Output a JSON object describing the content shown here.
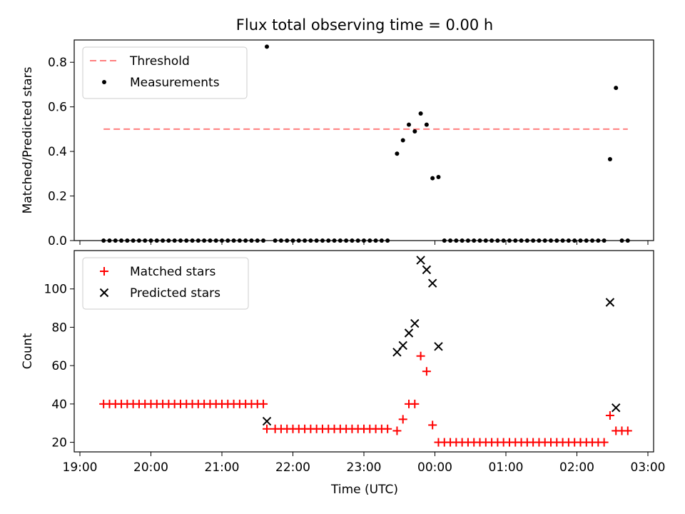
{
  "figure": {
    "title": "Flux total observing time = 0.00 h",
    "xlabel": "Time (UTC)"
  },
  "colors": {
    "threshold": "#ff7f7f",
    "measurements": "#000000",
    "matched": "#ff0000",
    "predicted": "#000000"
  },
  "chart_data": [
    {
      "type": "scatter",
      "panel": "top",
      "ylabel": "Matched/Predicted stars",
      "xlim": [
        "19:00",
        "03:00"
      ],
      "ylim": [
        0,
        0.9
      ],
      "yticks": [
        "0.0",
        "0.2",
        "0.4",
        "0.6",
        "0.8"
      ],
      "xticks": [
        "19:00",
        "20:00",
        "21:00",
        "22:00",
        "23:00",
        "00:00",
        "01:00",
        "02:00",
        "03:00"
      ],
      "show_xticklabels": false,
      "grid": false,
      "legend": {
        "position": "top-left",
        "entries": [
          "Threshold",
          "Measurements"
        ]
      },
      "threshold": {
        "name": "Threshold",
        "y": 0.5,
        "x_start": "19:20",
        "x_end": "02:43"
      },
      "series": [
        {
          "name": "Measurements",
          "marker": "dot",
          "points": [
            [
              "19:20",
              0
            ],
            [
              "19:25",
              0
            ],
            [
              "19:30",
              0
            ],
            [
              "19:35",
              0
            ],
            [
              "19:40",
              0
            ],
            [
              "19:45",
              0
            ],
            [
              "19:50",
              0
            ],
            [
              "19:55",
              0
            ],
            [
              "20:00",
              0
            ],
            [
              "20:05",
              0
            ],
            [
              "20:10",
              0
            ],
            [
              "20:15",
              0
            ],
            [
              "20:20",
              0
            ],
            [
              "20:25",
              0
            ],
            [
              "20:30",
              0
            ],
            [
              "20:35",
              0
            ],
            [
              "20:40",
              0
            ],
            [
              "20:45",
              0
            ],
            [
              "20:50",
              0
            ],
            [
              "20:55",
              0
            ],
            [
              "21:00",
              0
            ],
            [
              "21:05",
              0
            ],
            [
              "21:10",
              0
            ],
            [
              "21:15",
              0
            ],
            [
              "21:20",
              0
            ],
            [
              "21:25",
              0
            ],
            [
              "21:30",
              0
            ],
            [
              "21:35",
              0
            ],
            [
              "21:38",
              0.87
            ],
            [
              "21:45",
              0
            ],
            [
              "21:50",
              0
            ],
            [
              "21:55",
              0
            ],
            [
              "22:00",
              0
            ],
            [
              "22:05",
              0
            ],
            [
              "22:10",
              0
            ],
            [
              "22:15",
              0
            ],
            [
              "22:20",
              0
            ],
            [
              "22:25",
              0
            ],
            [
              "22:30",
              0
            ],
            [
              "22:35",
              0
            ],
            [
              "22:40",
              0
            ],
            [
              "22:45",
              0
            ],
            [
              "22:50",
              0
            ],
            [
              "22:55",
              0
            ],
            [
              "23:00",
              0
            ],
            [
              "23:05",
              0
            ],
            [
              "23:10",
              0
            ],
            [
              "23:15",
              0
            ],
            [
              "23:20",
              0
            ],
            [
              "23:28",
              0.39
            ],
            [
              "23:33",
              0.45
            ],
            [
              "23:38",
              0.52
            ],
            [
              "23:43",
              0.49
            ],
            [
              "23:48",
              0.57
            ],
            [
              "23:53",
              0.52
            ],
            [
              "23:58",
              0.28
            ],
            [
              "00:03",
              0.285
            ],
            [
              "00:08",
              0
            ],
            [
              "00:13",
              0
            ],
            [
              "00:18",
              0
            ],
            [
              "00:23",
              0
            ],
            [
              "00:28",
              0
            ],
            [
              "00:33",
              0
            ],
            [
              "00:38",
              0
            ],
            [
              "00:43",
              0
            ],
            [
              "00:48",
              0
            ],
            [
              "00:53",
              0
            ],
            [
              "00:58",
              0
            ],
            [
              "01:03",
              0
            ],
            [
              "01:08",
              0
            ],
            [
              "01:13",
              0
            ],
            [
              "01:18",
              0
            ],
            [
              "01:23",
              0
            ],
            [
              "01:28",
              0
            ],
            [
              "01:33",
              0
            ],
            [
              "01:38",
              0
            ],
            [
              "01:43",
              0
            ],
            [
              "01:48",
              0
            ],
            [
              "01:53",
              0
            ],
            [
              "01:58",
              0
            ],
            [
              "02:03",
              0
            ],
            [
              "02:08",
              0
            ],
            [
              "02:13",
              0
            ],
            [
              "02:18",
              0
            ],
            [
              "02:23",
              0
            ],
            [
              "02:28",
              0.365
            ],
            [
              "02:33",
              0.685
            ],
            [
              "02:38",
              0
            ],
            [
              "02:43",
              0
            ]
          ]
        }
      ]
    },
    {
      "type": "scatter",
      "panel": "bottom",
      "ylabel": "Count",
      "xlim": [
        "19:00",
        "03:00"
      ],
      "ylim": [
        15,
        120
      ],
      "yticks": [
        "20",
        "40",
        "60",
        "80",
        "100"
      ],
      "xticks": [
        "19:00",
        "20:00",
        "21:00",
        "22:00",
        "23:00",
        "00:00",
        "01:00",
        "02:00",
        "03:00"
      ],
      "show_xticklabels": true,
      "grid": false,
      "legend": {
        "position": "top-left",
        "entries": [
          "Matched stars",
          "Predicted stars"
        ]
      },
      "series": [
        {
          "name": "Matched stars",
          "marker": "plus",
          "points": [
            [
              "19:20",
              40
            ],
            [
              "19:25",
              40
            ],
            [
              "19:30",
              40
            ],
            [
              "19:35",
              40
            ],
            [
              "19:40",
              40
            ],
            [
              "19:45",
              40
            ],
            [
              "19:50",
              40
            ],
            [
              "19:55",
              40
            ],
            [
              "20:00",
              40
            ],
            [
              "20:05",
              40
            ],
            [
              "20:10",
              40
            ],
            [
              "20:15",
              40
            ],
            [
              "20:20",
              40
            ],
            [
              "20:25",
              40
            ],
            [
              "20:30",
              40
            ],
            [
              "20:35",
              40
            ],
            [
              "20:40",
              40
            ],
            [
              "20:45",
              40
            ],
            [
              "20:50",
              40
            ],
            [
              "20:55",
              40
            ],
            [
              "21:00",
              40
            ],
            [
              "21:05",
              40
            ],
            [
              "21:10",
              40
            ],
            [
              "21:15",
              40
            ],
            [
              "21:20",
              40
            ],
            [
              "21:25",
              40
            ],
            [
              "21:30",
              40
            ],
            [
              "21:35",
              40
            ],
            [
              "21:38",
              27
            ],
            [
              "21:45",
              27
            ],
            [
              "21:50",
              27
            ],
            [
              "21:55",
              27
            ],
            [
              "22:00",
              27
            ],
            [
              "22:05",
              27
            ],
            [
              "22:10",
              27
            ],
            [
              "22:15",
              27
            ],
            [
              "22:20",
              27
            ],
            [
              "22:25",
              27
            ],
            [
              "22:30",
              27
            ],
            [
              "22:35",
              27
            ],
            [
              "22:40",
              27
            ],
            [
              "22:45",
              27
            ],
            [
              "22:50",
              27
            ],
            [
              "22:55",
              27
            ],
            [
              "23:00",
              27
            ],
            [
              "23:05",
              27
            ],
            [
              "23:10",
              27
            ],
            [
              "23:15",
              27
            ],
            [
              "23:20",
              27
            ],
            [
              "23:28",
              26
            ],
            [
              "23:33",
              32
            ],
            [
              "23:38",
              40
            ],
            [
              "23:43",
              40
            ],
            [
              "23:48",
              65
            ],
            [
              "23:53",
              57
            ],
            [
              "23:58",
              29
            ],
            [
              "00:03",
              20
            ],
            [
              "00:08",
              20
            ],
            [
              "00:13",
              20
            ],
            [
              "00:18",
              20
            ],
            [
              "00:23",
              20
            ],
            [
              "00:28",
              20
            ],
            [
              "00:33",
              20
            ],
            [
              "00:38",
              20
            ],
            [
              "00:43",
              20
            ],
            [
              "00:48",
              20
            ],
            [
              "00:53",
              20
            ],
            [
              "00:58",
              20
            ],
            [
              "01:03",
              20
            ],
            [
              "01:08",
              20
            ],
            [
              "01:13",
              20
            ],
            [
              "01:18",
              20
            ],
            [
              "01:23",
              20
            ],
            [
              "01:28",
              20
            ],
            [
              "01:33",
              20
            ],
            [
              "01:38",
              20
            ],
            [
              "01:43",
              20
            ],
            [
              "01:48",
              20
            ],
            [
              "01:53",
              20
            ],
            [
              "01:58",
              20
            ],
            [
              "02:03",
              20
            ],
            [
              "02:08",
              20
            ],
            [
              "02:13",
              20
            ],
            [
              "02:18",
              20
            ],
            [
              "02:23",
              20
            ],
            [
              "02:28",
              34
            ],
            [
              "02:33",
              26
            ],
            [
              "02:38",
              26
            ],
            [
              "02:43",
              26
            ]
          ]
        },
        {
          "name": "Predicted stars",
          "marker": "x",
          "points": [
            [
              "21:38",
              31
            ],
            [
              "23:28",
              67
            ],
            [
              "23:33",
              70.5
            ],
            [
              "23:38",
              77
            ],
            [
              "23:43",
              82
            ],
            [
              "23:48",
              115
            ],
            [
              "23:53",
              110
            ],
            [
              "23:58",
              103
            ],
            [
              "00:03",
              70
            ],
            [
              "02:28",
              93
            ],
            [
              "02:33",
              38
            ]
          ]
        }
      ]
    }
  ]
}
